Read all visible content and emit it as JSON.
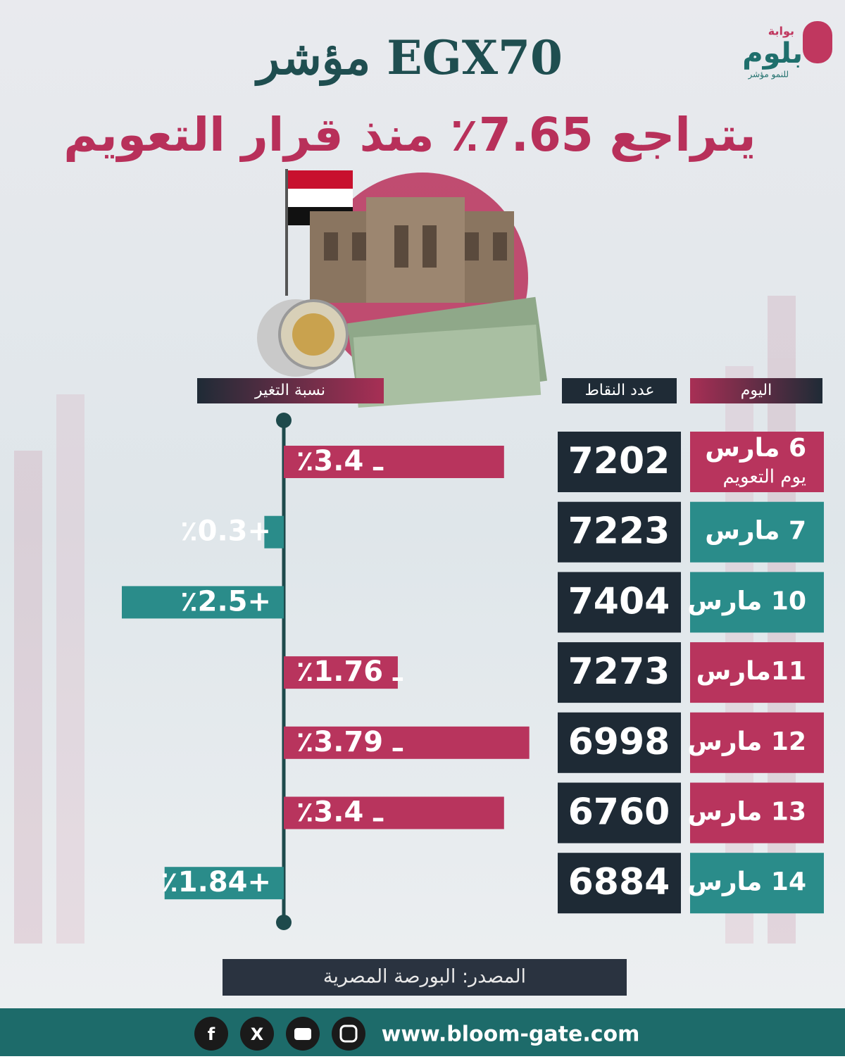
{
  "logo": {
    "top": "بوابة",
    "name": "بلوم",
    "tagline": "للنمو مؤشر"
  },
  "chart_data": {
    "type": "diverging-bar",
    "title": "مؤشر EGX70",
    "subtitle": "يتراجع 7.65٪ منذ قرار التعويم",
    "category_header": "اليوم",
    "categories": [
      "6 مارس",
      "7 مارس",
      "10 مارس",
      "11مارس",
      "12 مارس",
      "13 مارس",
      "14 مارس"
    ],
    "annotations": [
      "يوم التعويم"
    ],
    "xlim": [
      3,
      -4
    ],
    "series": [
      {
        "name": "عدد النقاط",
        "values": [
          7202,
          7223,
          7404,
          7273,
          6998,
          6760,
          6884
        ]
      },
      {
        "name": "نسبة التغير",
        "values": [
          -3.4,
          0.3,
          2.5,
          -1.76,
          -3.79,
          -3.4,
          1.84
        ],
        "value_labels": [
          "٪3.4 ـ",
          "٪0.3+",
          "٪2.5+",
          "٪1.76 ـ",
          "٪3.79 ـ",
          "٪3.4 ـ",
          "٪1.84+"
        ]
      }
    ],
    "colors": {
      "negative": "#b8345d",
      "positive": "#2a8c8a"
    }
  },
  "footer": {
    "source": "المصدر: البورصة المصرية",
    "website": "www.bloom-gate.com"
  }
}
